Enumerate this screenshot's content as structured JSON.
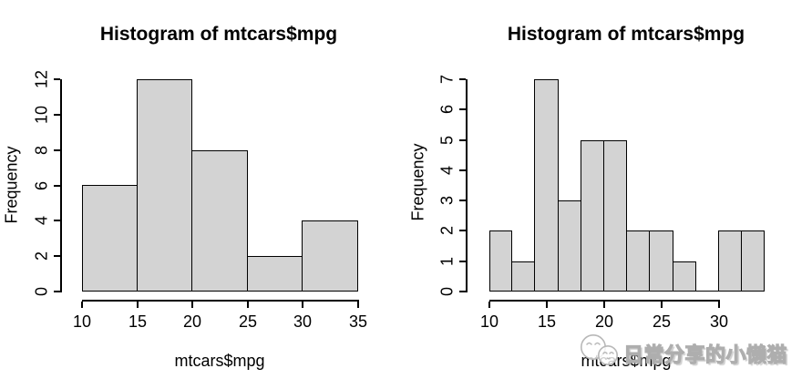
{
  "page": {
    "background": "#ffffff",
    "text_color": "#000000"
  },
  "chart_data": [
    {
      "type": "bar",
      "subtype": "histogram",
      "title": "Histogram of mtcars$mpg",
      "xlabel": "mtcars$mpg",
      "ylabel": "Frequency",
      "bin_edges": [
        10,
        15,
        20,
        25,
        30,
        35
      ],
      "values": [
        6,
        12,
        8,
        2,
        4
      ],
      "x_ticks": [
        10,
        15,
        20,
        25,
        30,
        35
      ],
      "y_ticks": [
        0,
        2,
        4,
        6,
        8,
        10,
        12
      ],
      "xlim": [
        10,
        35
      ],
      "ylim": [
        0,
        12
      ],
      "bar_fill": "#d3d3d3",
      "bar_border": "#000000",
      "grid": false,
      "legend": null
    },
    {
      "type": "bar",
      "subtype": "histogram",
      "title": "Histogram of mtcars$mpg",
      "xlabel": "mtcars$mpg",
      "ylabel": "Frequency",
      "bin_edges": [
        10,
        12,
        14,
        16,
        18,
        20,
        22,
        24,
        26,
        28,
        30,
        32,
        34
      ],
      "values": [
        2,
        1,
        7,
        3,
        5,
        5,
        2,
        2,
        1,
        0,
        2,
        2
      ],
      "x_ticks": [
        10,
        15,
        20,
        25,
        30
      ],
      "y_ticks": [
        0,
        1,
        2,
        3,
        4,
        5,
        6,
        7
      ],
      "xlim": [
        10,
        34
      ],
      "ylim": [
        0,
        7
      ],
      "bar_fill": "#d3d3d3",
      "bar_border": "#000000",
      "grid": false,
      "legend": null
    }
  ],
  "watermark": {
    "text": "日常分享的小懒猫",
    "icon": "cat-icon",
    "color": "#aeaeae"
  }
}
